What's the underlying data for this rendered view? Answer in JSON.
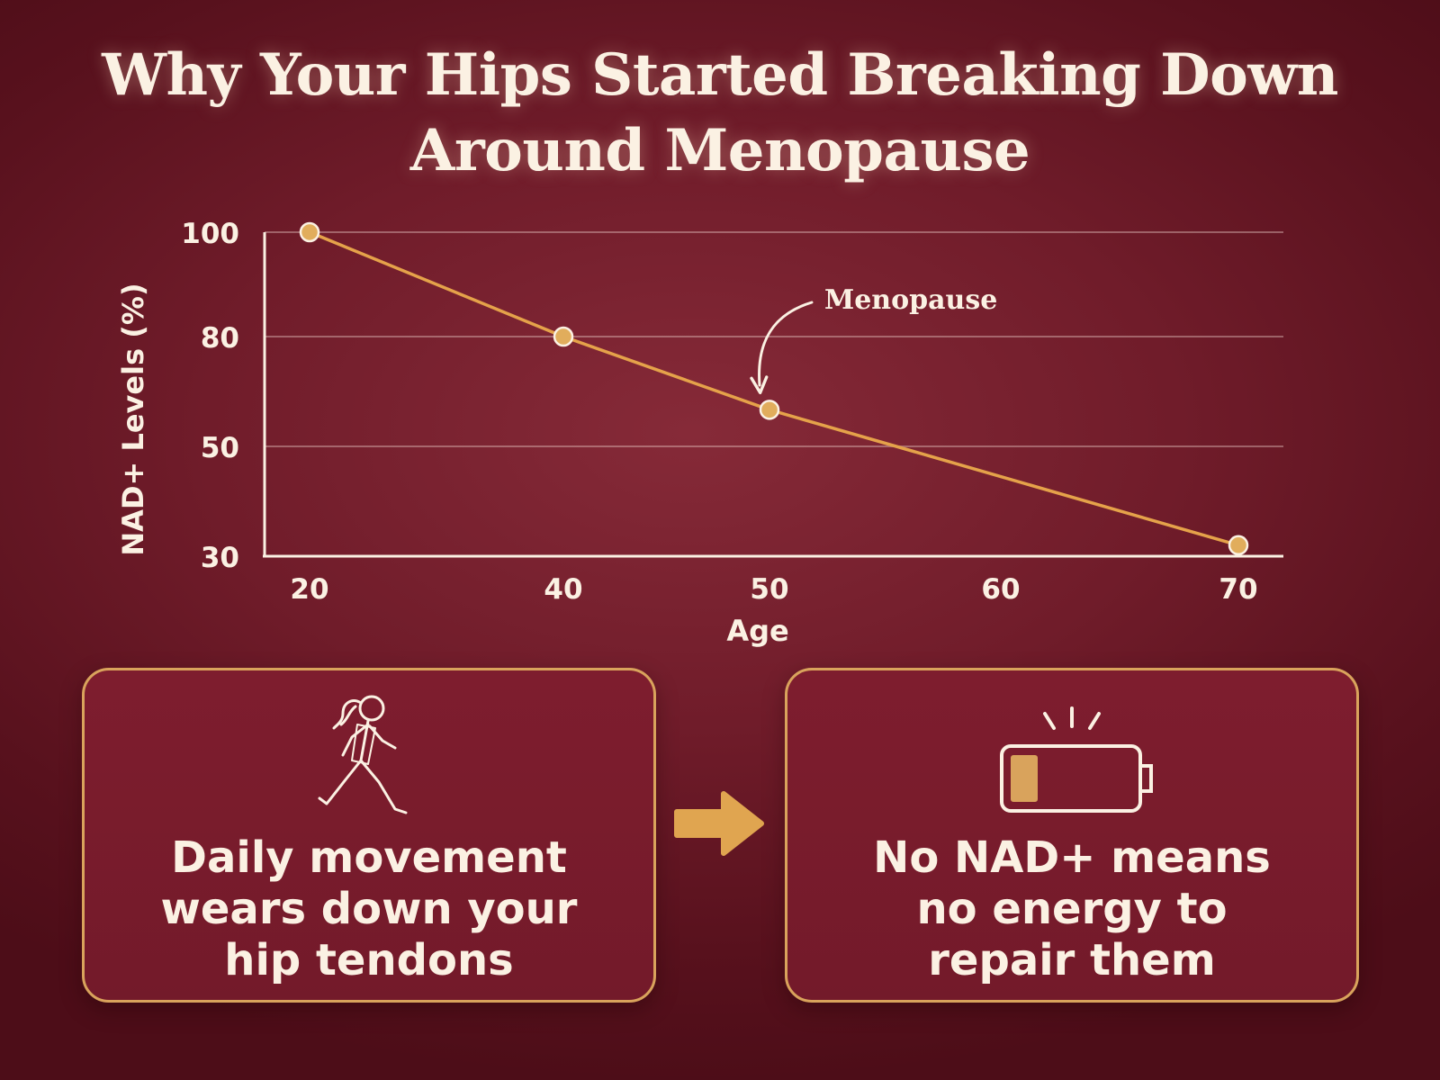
{
  "title_line1": "Why Your Hips Started Breaking Down",
  "title_line2": "Around Menopause",
  "chart_data": {
    "type": "line",
    "title": "Why Your Hips Started Breaking Down Around Menopause",
    "xlabel": "Age",
    "ylabel": "NAD+ Levels (%)",
    "x": [
      20,
      40,
      50,
      70
    ],
    "series": [
      {
        "values": [
          100,
          80,
          60,
          32
        ]
      }
    ],
    "x_ticks": [
      "20",
      "40",
      "50",
      "60",
      "70"
    ],
    "y_ticks": [
      "100",
      "80",
      "50",
      "30"
    ],
    "annotation": {
      "text": "Menopause",
      "x": 50,
      "y": 60
    },
    "grid": true,
    "line_color": "#e5a24a",
    "marker_color": "#e1ad5c"
  },
  "cards": [
    {
      "text": "Daily movement\nwears down your\nhip tendons",
      "icon": "walking-woman-icon"
    },
    {
      "text": "No NAD+ means\nno energy to\nrepair them",
      "icon": "low-battery-icon"
    }
  ],
  "arrow_icon": "right-arrow-icon",
  "colors": {
    "background": "#701c2a",
    "accent": "#d9a35c",
    "text": "#fbf1e3"
  }
}
